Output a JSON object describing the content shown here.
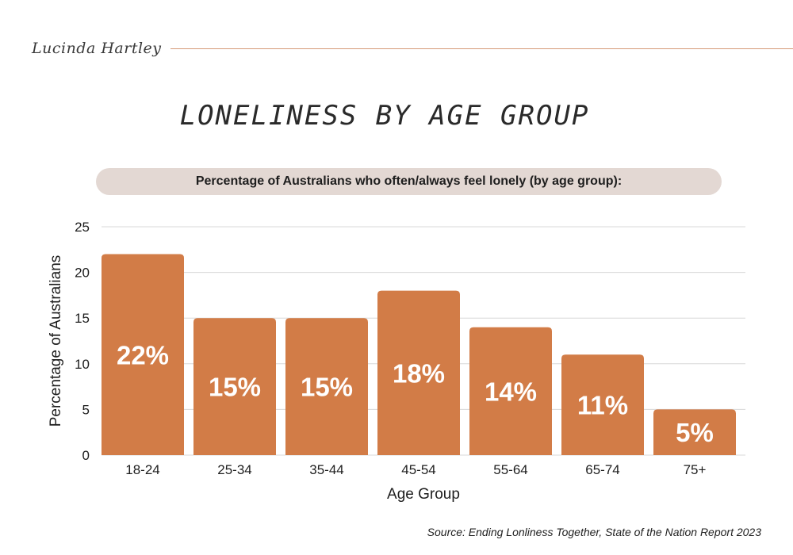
{
  "header": {
    "author": "Lucinda Hartley",
    "title": "LONELINESS BY AGE GROUP",
    "subtitle": "Percentage of Australians who often/always feel lonely (by age group):"
  },
  "footer": {
    "source": "Source: Ending Lonliness Together, State of the Nation Report 2023"
  },
  "colors": {
    "bar": "#d27c47",
    "accent_rule": "#d69a78",
    "pill": "#e3d8d3",
    "grid": "#d8d8d8",
    "bar_label": "#ffffff"
  },
  "chart_data": {
    "type": "bar",
    "categories": [
      "18-24",
      "25-34",
      "35-44",
      "45-54",
      "55-64",
      "65-74",
      "75+"
    ],
    "values": [
      22,
      15,
      15,
      18,
      14,
      11,
      5
    ],
    "data_labels": [
      "22%",
      "15%",
      "15%",
      "18%",
      "14%",
      "11%",
      "5%"
    ],
    "xlabel": "Age Group",
    "ylabel": "Percentage of Australians",
    "ylim": [
      0,
      25
    ],
    "yticks": [
      0,
      5,
      10,
      15,
      20,
      25
    ],
    "grid": true,
    "legend": "none"
  }
}
